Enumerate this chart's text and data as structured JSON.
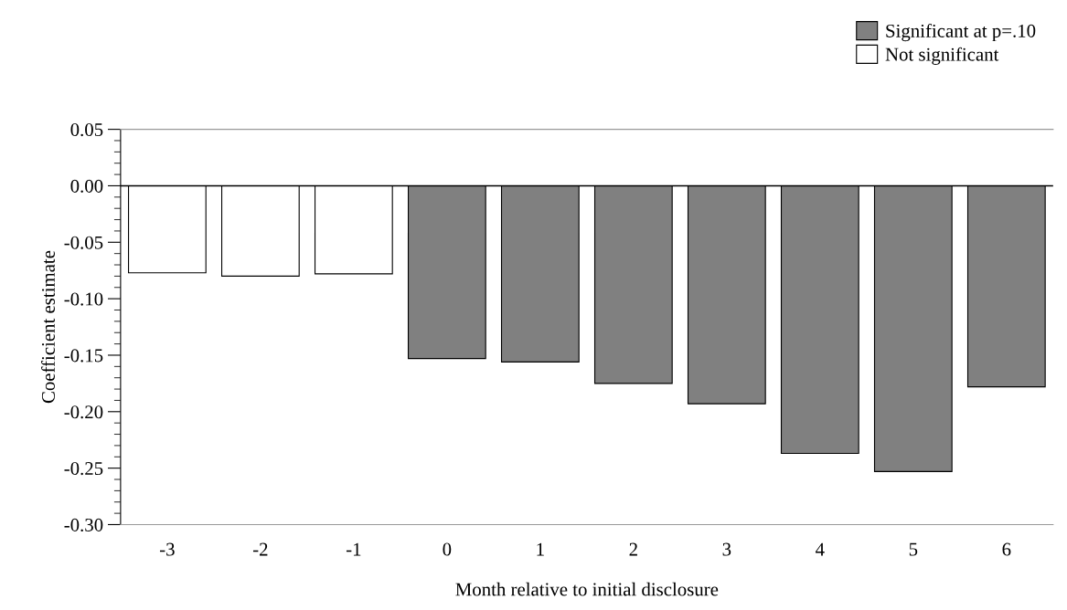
{
  "chart_data": {
    "type": "bar",
    "xlabel": "Month relative to initial disclosure",
    "ylabel": "Coefficient estimate",
    "categories": [
      "-3",
      "-2",
      "-1",
      "0",
      "1",
      "2",
      "3",
      "4",
      "5",
      "6"
    ],
    "stacked": true,
    "series": [
      {
        "name": "Significant at p=.10",
        "color": "#808080",
        "values": [
          null,
          null,
          null,
          -0.153,
          -0.156,
          -0.175,
          -0.193,
          -0.237,
          -0.253,
          -0.178
        ]
      },
      {
        "name": "Not significant",
        "color": "#ffffff",
        "values": [
          -0.077,
          -0.08,
          -0.078,
          null,
          null,
          null,
          null,
          null,
          null,
          null
        ]
      }
    ],
    "ylim": [
      -0.3,
      0.05
    ],
    "yticks": [
      {
        "value": -0.3,
        "label": "-0.30"
      },
      {
        "value": -0.25,
        "label": "-0.25"
      },
      {
        "value": -0.2,
        "label": "-0.20"
      },
      {
        "value": -0.15,
        "label": "-0.15"
      },
      {
        "value": -0.1,
        "label": "-0.10"
      },
      {
        "value": -0.05,
        "label": "-0.05"
      },
      {
        "value": 0,
        "label": "0.00"
      },
      {
        "value": 0.05,
        "label": "0.05"
      }
    ],
    "ref_lines": [
      {
        "axis": "y",
        "value": 0,
        "color": "#000000"
      }
    ],
    "legend": "top right",
    "grid": false
  }
}
